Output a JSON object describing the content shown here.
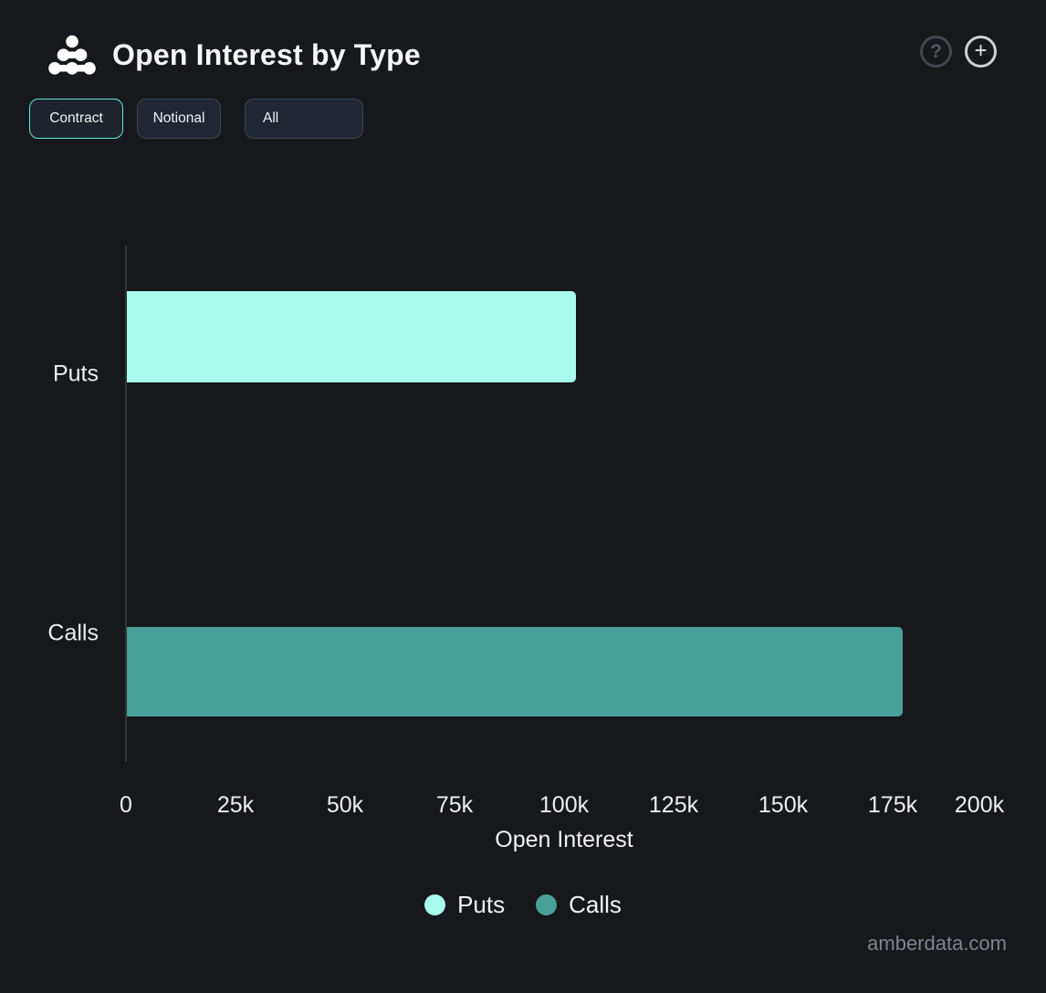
{
  "header": {
    "title": "Open Interest by Type",
    "icons": {
      "cluster_icon": "cluster-icon",
      "help_glyph": "?",
      "add_glyph": "+"
    }
  },
  "toolbar": {
    "buttons": [
      {
        "label": "Contract",
        "active": true
      },
      {
        "label": "Notional",
        "active": false
      },
      {
        "label": "All",
        "active": false
      }
    ]
  },
  "chart_data": {
    "type": "bar",
    "orientation": "horizontal",
    "title": "Open Interest by Type",
    "categories": [
      "Puts",
      "Calls"
    ],
    "values": [
      102500,
      177000
    ],
    "colors": [
      "#a9fbec",
      "#48a198"
    ],
    "xlabel": "Open Interest",
    "ylabel": "",
    "xlim": [
      0,
      200000
    ],
    "x_ticks": [
      "0",
      "25k",
      "50k",
      "75k",
      "100k",
      "125k",
      "150k",
      "175k",
      "200k"
    ],
    "x_tick_values": [
      0,
      25000,
      50000,
      75000,
      100000,
      125000,
      150000,
      175000,
      200000
    ],
    "grid": false,
    "legend_position": "bottom",
    "legend": [
      {
        "label": "Puts",
        "color": "#a9fbec"
      },
      {
        "label": "Calls",
        "color": "#48a198"
      }
    ]
  },
  "watermark": "amberdata.com",
  "colors": {
    "background": "#16181b",
    "accent": "#5fe8d6",
    "puts_bar": "#a9fbec",
    "calls_bar": "#48a198",
    "axis_line": "#303338",
    "text": "#eef0f2",
    "muted_text": "#7e848d"
  }
}
